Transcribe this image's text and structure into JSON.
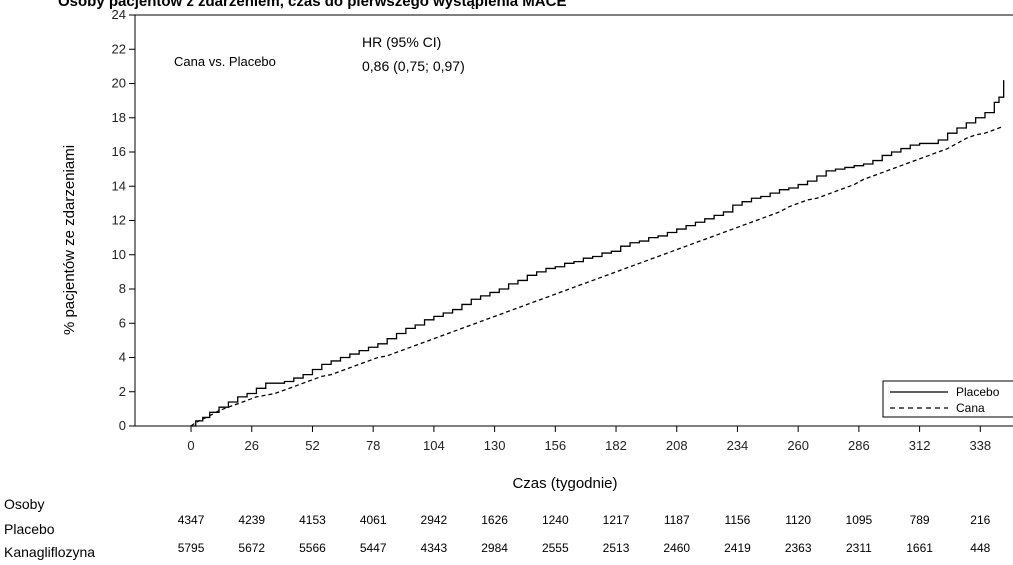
{
  "chart_data": {
    "type": "line",
    "title": "Osoby pacjentów z zdarzeniem, czas do pierwszego wystąpienia MACE",
    "xlabel": "Czas (tygodnie)",
    "ylabel": "% pacjentów ze zdarzeniami",
    "xlim": [
      -24,
      352
    ],
    "ylim": [
      0,
      24
    ],
    "xticks": [
      0,
      26,
      52,
      78,
      104,
      130,
      156,
      182,
      208,
      234,
      260,
      286,
      312,
      338
    ],
    "yticks": [
      0,
      2,
      4,
      6,
      8,
      10,
      12,
      14,
      16,
      18,
      20,
      22,
      24
    ],
    "grid": false,
    "legend": "bottom-right",
    "series": [
      {
        "name": "Placebo",
        "style": "solid",
        "x": [
          0,
          2,
          5,
          8,
          12,
          16,
          20,
          24,
          28,
          32,
          36,
          40,
          44,
          48,
          52,
          56,
          60,
          64,
          68,
          72,
          76,
          80,
          84,
          88,
          92,
          96,
          100,
          104,
          108,
          112,
          116,
          120,
          124,
          128,
          132,
          136,
          140,
          144,
          148,
          152,
          156,
          160,
          164,
          168,
          172,
          176,
          180,
          184,
          188,
          192,
          196,
          200,
          204,
          208,
          212,
          216,
          220,
          224,
          228,
          232,
          236,
          240,
          244,
          248,
          252,
          256,
          260,
          264,
          268,
          272,
          276,
          280,
          284,
          288,
          292,
          296,
          300,
          304,
          308,
          312,
          316,
          320,
          324,
          328,
          332,
          336,
          340,
          344,
          346,
          348
        ],
        "y": [
          0,
          0.3,
          0.5,
          0.8,
          1.1,
          1.4,
          1.7,
          1.9,
          2.2,
          2.5,
          2.5,
          2.6,
          2.8,
          3.0,
          3.3,
          3.6,
          3.8,
          4.0,
          4.2,
          4.4,
          4.6,
          4.8,
          5.1,
          5.4,
          5.7,
          5.9,
          6.2,
          6.4,
          6.6,
          6.8,
          7.1,
          7.4,
          7.6,
          7.8,
          8.0,
          8.3,
          8.5,
          8.8,
          9.0,
          9.2,
          9.3,
          9.5,
          9.6,
          9.8,
          9.9,
          10.1,
          10.2,
          10.5,
          10.7,
          10.8,
          11.0,
          11.1,
          11.3,
          11.5,
          11.7,
          11.9,
          12.1,
          12.3,
          12.5,
          12.9,
          13.1,
          13.3,
          13.4,
          13.6,
          13.8,
          13.9,
          14.1,
          14.3,
          14.6,
          14.9,
          15.0,
          15.1,
          15.2,
          15.3,
          15.5,
          15.8,
          16.0,
          16.2,
          16.4,
          16.5,
          16.5,
          16.7,
          17.1,
          17.4,
          17.7,
          18.0,
          18.3,
          18.9,
          19.2,
          20.2
        ]
      },
      {
        "name": "Cana",
        "style": "dashed",
        "x": [
          0,
          2,
          5,
          8,
          12,
          16,
          20,
          24,
          28,
          32,
          36,
          40,
          44,
          48,
          52,
          56,
          60,
          64,
          68,
          72,
          76,
          80,
          84,
          88,
          92,
          96,
          100,
          104,
          108,
          112,
          116,
          120,
          124,
          128,
          132,
          136,
          140,
          144,
          148,
          152,
          156,
          160,
          164,
          168,
          172,
          176,
          180,
          184,
          188,
          192,
          196,
          200,
          204,
          208,
          212,
          216,
          220,
          224,
          228,
          232,
          236,
          240,
          244,
          248,
          252,
          256,
          260,
          264,
          268,
          272,
          276,
          280,
          284,
          288,
          292,
          296,
          300,
          304,
          308,
          312,
          316,
          320,
          324,
          328,
          332,
          336,
          340,
          344,
          348
        ],
        "y": [
          0,
          0.2,
          0.4,
          0.6,
          0.9,
          1.1,
          1.3,
          1.5,
          1.7,
          1.8,
          1.9,
          2.1,
          2.3,
          2.5,
          2.7,
          2.9,
          3.0,
          3.2,
          3.4,
          3.6,
          3.8,
          4.0,
          4.1,
          4.3,
          4.5,
          4.7,
          4.9,
          5.1,
          5.3,
          5.5,
          5.7,
          5.9,
          6.1,
          6.3,
          6.5,
          6.7,
          6.9,
          7.1,
          7.3,
          7.5,
          7.7,
          7.9,
          8.1,
          8.3,
          8.5,
          8.7,
          8.9,
          9.1,
          9.3,
          9.5,
          9.7,
          9.9,
          10.1,
          10.3,
          10.5,
          10.7,
          10.9,
          11.1,
          11.3,
          11.5,
          11.7,
          11.9,
          12.1,
          12.3,
          12.5,
          12.8,
          13.0,
          13.2,
          13.3,
          13.5,
          13.7,
          13.9,
          14.1,
          14.4,
          14.6,
          14.8,
          15.0,
          15.2,
          15.4,
          15.6,
          15.8,
          16.0,
          16.2,
          16.5,
          16.8,
          17.0,
          17.1,
          17.3,
          17.5
        ]
      }
    ],
    "annotations": {
      "comparison": "Cana vs. Placebo",
      "hr_header": "HR (95% CI)",
      "hr_value": "0,86 (0,75; 0,97)"
    },
    "risk_table": {
      "header": "Osoby",
      "rows": [
        {
          "label": "Placebo",
          "values": [
            4347,
            4239,
            4153,
            4061,
            2942,
            1626,
            1240,
            1217,
            1187,
            1156,
            1120,
            1095,
            789,
            216
          ]
        },
        {
          "label": "Kanagliflozyna",
          "values": [
            5795,
            5672,
            5566,
            5447,
            4343,
            2984,
            2555,
            2513,
            2460,
            2419,
            2363,
            2311,
            1661,
            448
          ]
        }
      ]
    }
  }
}
